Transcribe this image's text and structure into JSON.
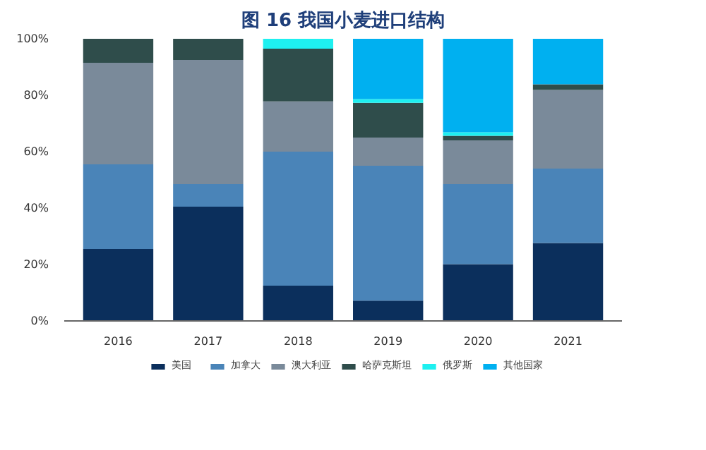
{
  "chart_data": {
    "type": "bar",
    "title": "图 16 我国小麦进口结构",
    "stacked": true,
    "categories": [
      "2016",
      "2017",
      "2018",
      "2019",
      "2020",
      "2021"
    ],
    "series": [
      {
        "name": "美国",
        "color": "#0b2f5c",
        "values": [
          25.5,
          40.5,
          12.5,
          7.2,
          20.1,
          27.6
        ]
      },
      {
        "name": "加拿大",
        "color": "#4a84b8",
        "values": [
          30,
          8,
          47.5,
          47.8,
          28.4,
          26.4
        ]
      },
      {
        "name": "澳大利亚",
        "color": "#7a8a9a",
        "values": [
          36,
          44,
          17.8,
          10,
          15.5,
          27.9
        ]
      },
      {
        "name": "哈萨克斯坦",
        "color": "#2f4d4b",
        "values": [
          8.5,
          7.5,
          18.7,
          12.3,
          1.6,
          2
        ]
      },
      {
        "name": "俄罗斯",
        "color": "#1ef0f0",
        "values": [
          0,
          0,
          3.5,
          1.3,
          1.3,
          0
        ]
      },
      {
        "name": "其他国家",
        "color": "#00b0f0",
        "values": [
          0,
          0,
          0,
          21.4,
          33.1,
          16.1
        ]
      }
    ],
    "ylim": [
      0,
      100
    ],
    "yticks": [
      {
        "value": 0,
        "label": "0%"
      },
      {
        "value": 20,
        "label": "20%"
      },
      {
        "value": 40,
        "label": "40%"
      },
      {
        "value": 60,
        "label": "60%"
      },
      {
        "value": 80,
        "label": "80%"
      },
      {
        "value": 100,
        "label": "100%"
      }
    ],
    "grid": false,
    "legend": "bottom"
  }
}
